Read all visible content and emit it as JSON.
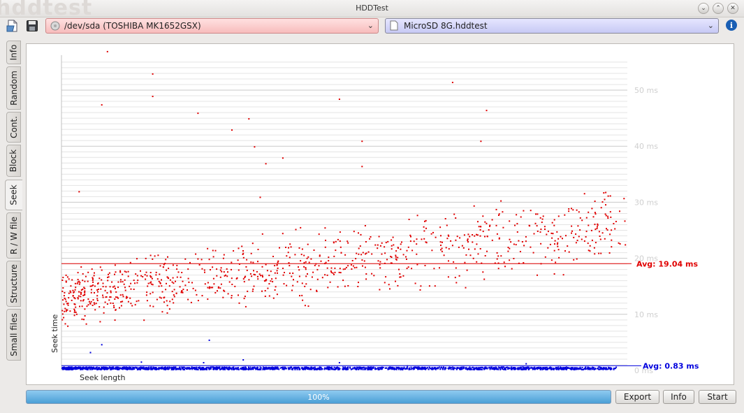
{
  "window": {
    "title": "HDDTest",
    "watermark": "hddtest"
  },
  "toolbar": {
    "open_icon": "open-document-icon",
    "save_icon": "save-disk-icon",
    "device_selected": "/dev/sda (TOSHIBA MK1652GSX)",
    "file_selected": "MicroSD 8G.hddtest",
    "info_icon": "info-icon",
    "device_color": "#f7bcbc",
    "file_color": "#c7c9f4"
  },
  "tabs": [
    {
      "label": "Info",
      "active": false
    },
    {
      "label": "Random",
      "active": false
    },
    {
      "label": "Cont.",
      "active": false
    },
    {
      "label": "Block",
      "active": false
    },
    {
      "label": "Seek",
      "active": true
    },
    {
      "label": "R / W file",
      "active": false
    },
    {
      "label": "Structure",
      "active": false
    },
    {
      "label": "Small files",
      "active": false
    }
  ],
  "chart_data": {
    "type": "scatter",
    "xlabel": "Seek length",
    "ylabel": "Seek time",
    "y_unit": "ms",
    "ylim": [
      0,
      55
    ],
    "y_ticks": [
      {
        "value": 0,
        "label": "0 ms"
      },
      {
        "value": 10,
        "label": "10 ms"
      },
      {
        "value": 20,
        "label": "20 ms"
      },
      {
        "value": 30,
        "label": "30 ms"
      },
      {
        "value": 40,
        "label": "40 ms"
      },
      {
        "value": 50,
        "label": "50 ms"
      }
    ],
    "x_ticks_labeled": false,
    "grid": true,
    "series": [
      {
        "color": "#e00000",
        "average": 19.04,
        "average_label": "Avg: 19.04 ms",
        "trend": "seek time rises from about 8–18 ms at short seek lengths to about 20–30 ms at the longest seek lengths, with sparse outliers up to about 57 ms",
        "sample_points": [
          [
            0.01,
            8
          ],
          [
            0.02,
            14
          ],
          [
            0.04,
            16
          ],
          [
            0.05,
            12
          ],
          [
            0.07,
            18
          ],
          [
            0.09,
            15
          ],
          [
            0.12,
            13
          ],
          [
            0.15,
            17
          ],
          [
            0.18,
            19
          ],
          [
            0.2,
            16
          ],
          [
            0.24,
            20
          ],
          [
            0.28,
            18
          ],
          [
            0.32,
            21
          ],
          [
            0.36,
            19
          ],
          [
            0.4,
            22
          ],
          [
            0.44,
            20
          ],
          [
            0.48,
            23
          ],
          [
            0.52,
            21
          ],
          [
            0.56,
            24
          ],
          [
            0.6,
            23
          ],
          [
            0.64,
            25
          ],
          [
            0.68,
            26
          ],
          [
            0.72,
            24
          ],
          [
            0.76,
            27
          ],
          [
            0.8,
            26
          ],
          [
            0.84,
            28
          ],
          [
            0.87,
            27
          ],
          [
            0.9,
            29
          ],
          [
            0.93,
            26
          ],
          [
            0.96,
            28
          ],
          [
            0.08,
            57
          ],
          [
            0.16,
            53
          ],
          [
            0.07,
            47.5
          ],
          [
            0.16,
            49
          ],
          [
            0.24,
            46
          ],
          [
            0.33,
            45
          ],
          [
            0.3,
            43
          ],
          [
            0.49,
            48.5
          ],
          [
            0.69,
            51.5
          ],
          [
            0.75,
            46.5
          ],
          [
            0.53,
            41
          ],
          [
            0.74,
            41
          ],
          [
            0.39,
            38
          ],
          [
            0.53,
            36.5
          ],
          [
            0.34,
            40
          ],
          [
            0.36,
            37
          ],
          [
            0.03,
            32
          ],
          [
            0.35,
            31
          ]
        ]
      },
      {
        "color": "#0000dd",
        "average": 0.83,
        "average_label": "Avg: 0.83 ms",
        "trend": "nearly constant below 1 ms across all seek lengths, with a few points around 2–5 ms",
        "sample_points": [
          [
            0.05,
            3.3
          ],
          [
            0.07,
            4.7
          ],
          [
            0.14,
            1.6
          ],
          [
            0.25,
            1.5
          ],
          [
            0.26,
            5.5
          ],
          [
            0.32,
            2.0
          ],
          [
            0.49,
            1.5
          ],
          [
            0.61,
            0.9
          ],
          [
            0.82,
            1.3
          ],
          [
            0.5,
            0.7
          ],
          [
            0.2,
            0.6
          ],
          [
            0.9,
            0.6
          ]
        ]
      }
    ]
  },
  "bottom": {
    "progress_percent": 100,
    "progress_label": "100%",
    "export_label": "Export",
    "info_label": "Info",
    "start_label": "Start"
  }
}
